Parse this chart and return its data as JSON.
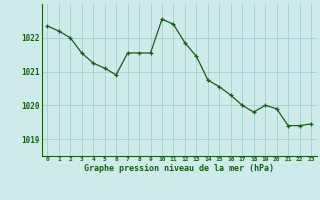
{
  "x": [
    0,
    1,
    2,
    3,
    4,
    5,
    6,
    7,
    8,
    9,
    10,
    11,
    12,
    13,
    14,
    15,
    16,
    17,
    18,
    19,
    20,
    21,
    22,
    23
  ],
  "y": [
    1022.35,
    1022.2,
    1022.0,
    1021.55,
    1021.25,
    1021.1,
    1020.9,
    1021.55,
    1021.55,
    1021.55,
    1022.55,
    1022.4,
    1021.85,
    1021.45,
    1020.75,
    1020.55,
    1020.3,
    1020.0,
    1019.8,
    1020.0,
    1019.9,
    1019.4,
    1019.4,
    1019.45
  ],
  "bg_color": "#ceeaea",
  "line_color": "#1a5c1a",
  "marker_color": "#1a5c1a",
  "grid_color_major": "#9cc8c8",
  "grid_color_minor": "#b8dede",
  "xlabel": "Graphe pression niveau de la mer (hPa)",
  "xlabel_color": "#1a5c1a",
  "tick_color": "#1a5c1a",
  "ytick_labels": [
    1019,
    1020,
    1021,
    1022
  ],
  "xtick_labels": [
    "0",
    "1",
    "2",
    "3",
    "4",
    "5",
    "6",
    "7",
    "8",
    "9",
    "10",
    "11",
    "12",
    "13",
    "14",
    "15",
    "16",
    "17",
    "18",
    "19",
    "20",
    "21",
    "22",
    "23"
  ],
  "ylim": [
    1018.5,
    1023.0
  ],
  "xlim": [
    -0.5,
    23.5
  ],
  "figsize": [
    3.2,
    2.0
  ],
  "dpi": 100
}
